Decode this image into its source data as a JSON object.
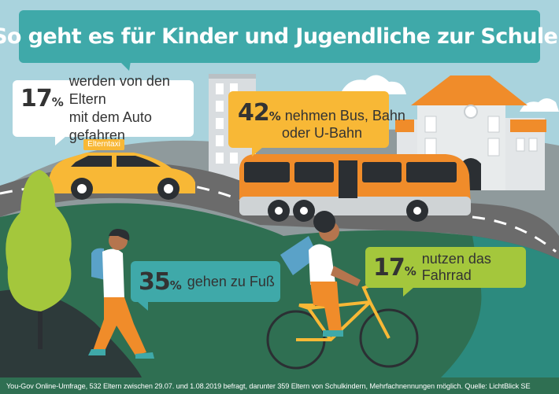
{
  "title": "So geht es für Kinder und Jugendliche zur Schule!",
  "stats": {
    "car": {
      "percent": "17",
      "percent_sign": "%",
      "text": "werden von den Eltern mit dem Auto gefahren",
      "line1": "werden von den Eltern",
      "line2": "mit dem Auto gefahren"
    },
    "bus": {
      "percent": "42",
      "percent_sign": "%",
      "line1": "nehmen Bus, Bahn",
      "line2": "oder U-Bahn"
    },
    "walk": {
      "percent": "35",
      "percent_sign": "%",
      "text": "gehen zu Fuß"
    },
    "bike": {
      "percent": "17",
      "percent_sign": "%",
      "text": "nutzen das Fahrrad"
    }
  },
  "taxi_label": "Elterntaxi",
  "source": "You-Gov Online-Umfrage, 532 Eltern zwischen 29.07. und 1.08.2019 befragt, darunter 359 Eltern von Schulkindern, Mehrfachnennungen möglich. Quelle: LichtBlick SE",
  "colors": {
    "teal": "#3fa9a9",
    "orange": "#f8b836",
    "green": "#a4c73c",
    "dark_green": "#2f6f52",
    "sky": "#a9d3dd",
    "road": "#6b6b6b"
  }
}
